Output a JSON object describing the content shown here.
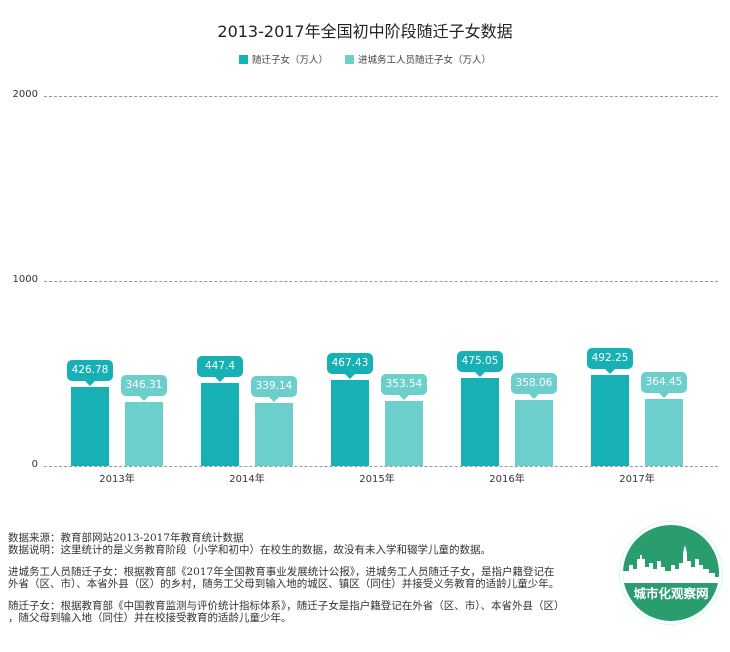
{
  "title": "2013-2017年全国初中阶段随迁子女数据",
  "legend": [
    {
      "label": "随迁子女（万人）",
      "color": "#17b1b5"
    },
    {
      "label": "进城务工人员随迁子女（万人）",
      "color": "#6dcfcc"
    }
  ],
  "y_axis": {
    "ticks": [
      "2000",
      "1000",
      "0"
    ]
  },
  "chart_data": {
    "type": "bar",
    "title": "2013-2017年全国初中阶段随迁子女数据",
    "xlabel": "",
    "ylabel": "",
    "ylim": [
      0,
      2000
    ],
    "yticks": [
      0,
      1000,
      2000
    ],
    "grid": true,
    "legend_position": "top",
    "categories": [
      "2013年",
      "2014年",
      "2015年",
      "2016年",
      "2017年"
    ],
    "series": [
      {
        "name": "随迁子女（万人）",
        "color": "#17b1b5",
        "values": [
          426.78,
          447.4,
          467.43,
          475.05,
          492.25
        ],
        "labels": [
          "426.78",
          "447.4",
          "467.43",
          "475.05",
          "492.25"
        ]
      },
      {
        "name": "进城务工人员随迁子女（万人）",
        "color": "#6dcfcc",
        "values": [
          346.31,
          339.14,
          353.54,
          358.06,
          364.45
        ],
        "labels": [
          "346.31",
          "339.14",
          "353.54",
          "358.06",
          "364.45"
        ]
      }
    ]
  },
  "notes": {
    "source": "数据来源：教育部网站2013-2017年教育统计数据",
    "explain": "数据说明：这里统计的是义务教育阶段（小学和初中）在校生的数据，故没有未入学和辍学儿童的数据。",
    "def_migrant_1": "进城务工人员随迁子女：根据教育部《2017年全国教育事业发展统计公报》，进城务工人员随迁子女，是指户籍登记在",
    "def_migrant_2": "外省（区、市）、本省外县（区）的乡村，随务工父母到输入地的城区、镇区（同住）并接受义务教育的适龄儿童少年。",
    "def_accompany_1": "随迁子女：根据教育部《中国教育监测与评价统计指标体系》，随迁子女是指户籍登记在外省（区、市）、本省外县（区）",
    "def_accompany_2": "，随父母到输入地（同住）并在校接受教育的适龄儿童少年。"
  },
  "logo": {
    "text": "城市化观察网",
    "color": "#2a9d6e"
  }
}
